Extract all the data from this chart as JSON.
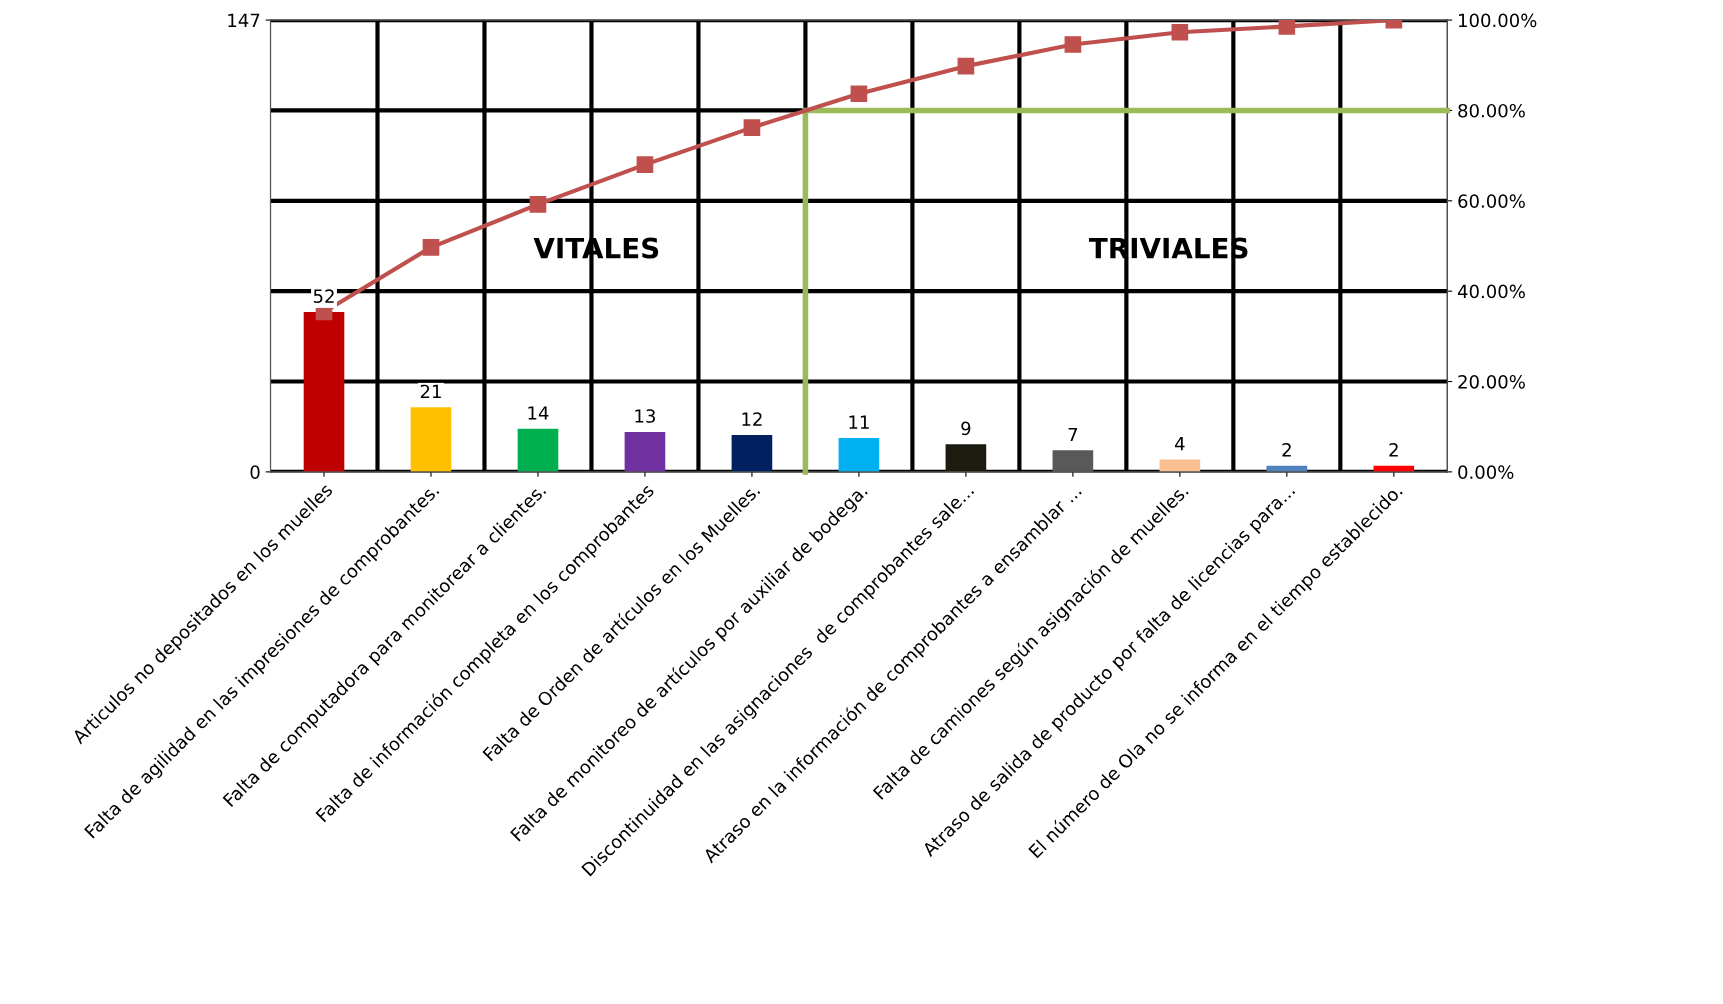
{
  "chart_data": {
    "type": "bar",
    "categories": [
      "Articulos no depositados en los muelles",
      "Falta de agilidad en las impresiones de comprobantes.",
      "Falta de computadora para monitorear a clientes.",
      "Falta de información completa en los comprobantes",
      "Falta de Orden de artículos en los Muelles.",
      "Falta de monitoreo de artículos por auxiliar de bodega.",
      "Discontinuidad en las asignaciones  de comprobantes sale...",
      "Atraso en la información de comprobantes a ensamblar ...",
      "Falta de camiones según asignación de muelles.",
      "Atraso de salida de producto por falta de licencias para...",
      "El número de Ola no se informa en el tiempo establecido."
    ],
    "series": [
      {
        "values": [
          52,
          21,
          14,
          13,
          12,
          11,
          9,
          7,
          4,
          2,
          2
        ],
        "colors": [
          "#c00000",
          "#ffc000",
          "#00b050",
          "#7030a0",
          "#002060",
          "#00b0f0",
          "#1d1b10",
          "#595959",
          "#fac090",
          "#4f81bd",
          "#ff0000"
        ],
        "value_labels": [
          "52",
          "21",
          "14",
          "13",
          "12",
          "11",
          "9",
          "7",
          "4",
          "2",
          "2"
        ]
      },
      {
        "type": "line",
        "axis": "y2",
        "color": "#c0504d",
        "marker": "square",
        "values": [
          35.4,
          49.7,
          59.2,
          68.0,
          76.2,
          83.7,
          89.8,
          94.6,
          97.3,
          98.6,
          100.0
        ]
      }
    ],
    "ylim": [
      0,
      147
    ],
    "yticks": [
      0,
      147
    ],
    "y2lim": [
      0,
      100
    ],
    "y2ticks": [
      {
        "value": 0,
        "label": "0.00%"
      },
      {
        "value": 20,
        "label": "20.00%"
      },
      {
        "value": 40,
        "label": "40.00%"
      },
      {
        "value": 60,
        "label": "60.00%"
      },
      {
        "value": 80,
        "label": "80.00%"
      },
      {
        "value": 100,
        "label": "100.00%"
      }
    ],
    "grid": true,
    "ref_lines": [
      {
        "axis": "y2",
        "value": 80,
        "color": "#9bbb59"
      }
    ],
    "annotations": [
      "VITALES",
      "TRIVIALES"
    ]
  }
}
